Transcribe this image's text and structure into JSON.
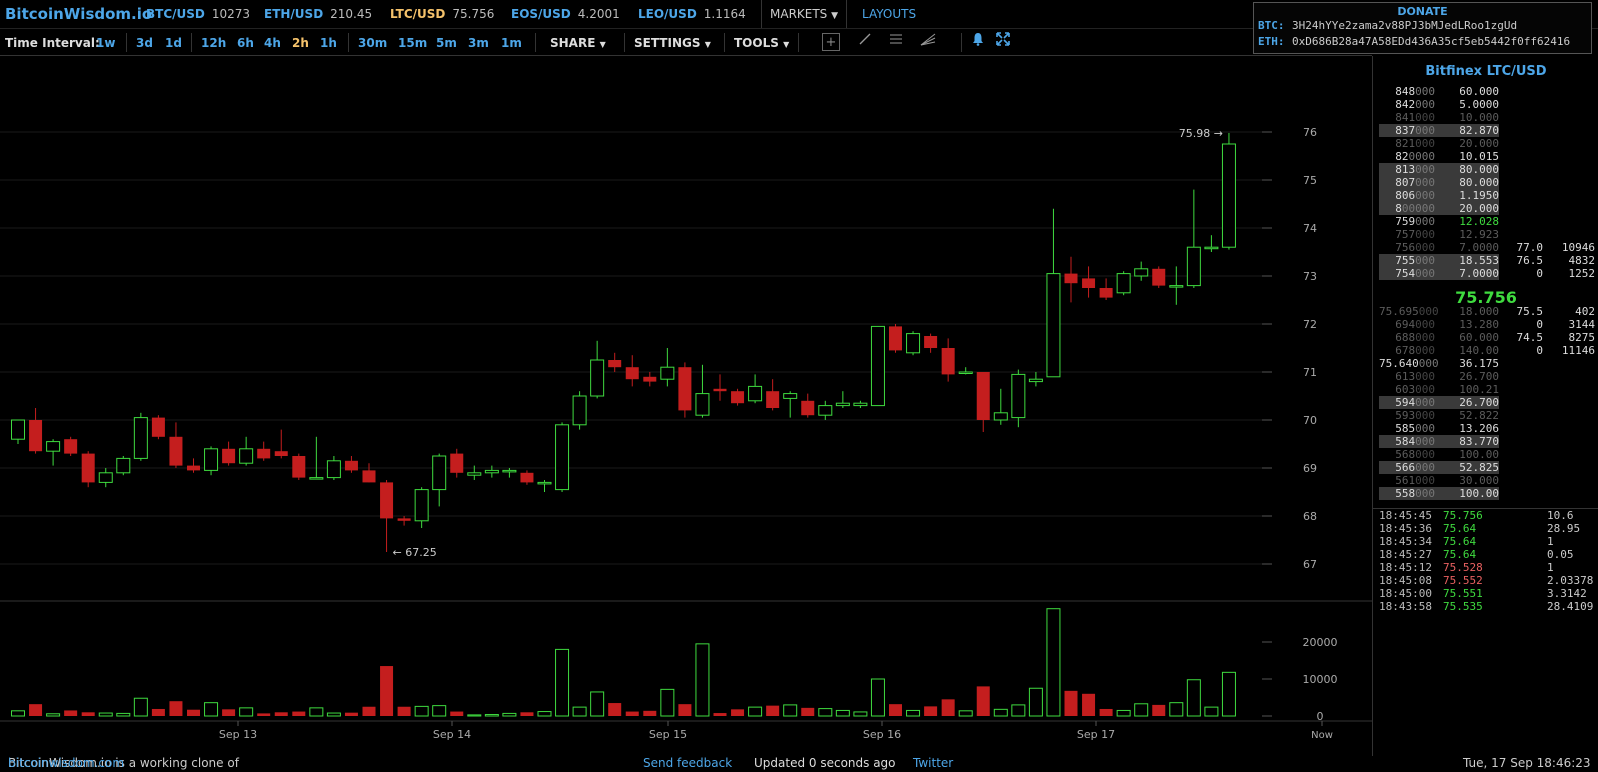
{
  "topbar": {
    "logo": "BitcoinWisdom.io",
    "tickers": [
      {
        "symbol": "BTC/USD",
        "price": "10273",
        "active": false
      },
      {
        "symbol": "ETH/USD",
        "price": "210.45",
        "active": false
      },
      {
        "symbol": "LTC/USD",
        "price": "75.756",
        "active": true
      },
      {
        "symbol": "EOS/USD",
        "price": "4.2001",
        "active": false
      },
      {
        "symbol": "LEO/USD",
        "price": "1.1164",
        "active": false
      }
    ],
    "markets_label": "MARKETS",
    "layouts_label": "LAYOUTS"
  },
  "donate": {
    "title": "DONATE",
    "btc_label": "BTC:",
    "btc_address": "3H24hYYe2zama2v88PJ3bMJedLRoo1zgUd",
    "eth_label": "ETH:",
    "eth_address": "0xD686B28a47A58EDd436A35cf5eb5442f0ff62416"
  },
  "toolbar": {
    "time_interval_label": "Time Interval:",
    "intervals": [
      "1w",
      "3d",
      "1d",
      "12h",
      "6h",
      "4h",
      "2h",
      "1h",
      "30m",
      "15m",
      "5m",
      "3m",
      "1m"
    ],
    "selected_interval": "2h",
    "share_label": "SHARE",
    "settings_label": "SETTINGS",
    "tools_label": "TOOLS",
    "icons": [
      "crosshair-icon",
      "line-tool-icon",
      "fib-levels-icon",
      "fan-tool-icon",
      "alert-bell-icon",
      "fullscreen-icon"
    ]
  },
  "chart": {
    "price_ticks": [
      "76",
      "75",
      "74",
      "73",
      "72",
      "71",
      "70",
      "69",
      "68",
      "67"
    ],
    "volume_ticks": [
      "20000",
      "10000",
      "0"
    ],
    "x_labels": [
      "Sep 13",
      "Sep 14",
      "Sep 15",
      "Sep 16",
      "Sep 17",
      "Now"
    ],
    "high_label": "75.98 →",
    "low_label": "← 67.25",
    "colors": {
      "up": "#3fdb3f",
      "down": "#c41e1e",
      "grid": "#1a1a1a",
      "axis_text": "#aaa"
    }
  },
  "chart_data": {
    "type": "candlestick",
    "symbol": "LTC/USD",
    "interval": "2h",
    "ylim": [
      66.7,
      76.6
    ],
    "volume_ylim": [
      0,
      30000
    ],
    "candles": [
      {
        "o": 69.6,
        "h": 70.0,
        "l": 69.5,
        "c": 70.0,
        "v": 1400
      },
      {
        "o": 70.0,
        "h": 70.25,
        "l": 69.3,
        "c": 69.35,
        "v": 3200
      },
      {
        "o": 69.35,
        "h": 69.6,
        "l": 69.05,
        "c": 69.55,
        "v": 600
      },
      {
        "o": 69.6,
        "h": 69.65,
        "l": 69.25,
        "c": 69.3,
        "v": 1500
      },
      {
        "o": 69.3,
        "h": 69.35,
        "l": 68.6,
        "c": 68.7,
        "v": 1000
      },
      {
        "o": 68.7,
        "h": 69.0,
        "l": 68.6,
        "c": 68.9,
        "v": 800
      },
      {
        "o": 68.9,
        "h": 69.25,
        "l": 68.85,
        "c": 69.2,
        "v": 700
      },
      {
        "o": 69.2,
        "h": 70.15,
        "l": 69.15,
        "c": 70.05,
        "v": 4800
      },
      {
        "o": 70.05,
        "h": 70.1,
        "l": 69.6,
        "c": 69.65,
        "v": 1900
      },
      {
        "o": 69.65,
        "h": 69.95,
        "l": 69.0,
        "c": 69.05,
        "v": 4000
      },
      {
        "o": 69.05,
        "h": 69.2,
        "l": 68.9,
        "c": 68.95,
        "v": 1700
      },
      {
        "o": 68.95,
        "h": 69.45,
        "l": 68.85,
        "c": 69.4,
        "v": 3600
      },
      {
        "o": 69.4,
        "h": 69.55,
        "l": 69.05,
        "c": 69.1,
        "v": 1800
      },
      {
        "o": 69.1,
        "h": 69.65,
        "l": 69.05,
        "c": 69.4,
        "v": 2200
      },
      {
        "o": 69.4,
        "h": 69.55,
        "l": 69.15,
        "c": 69.2,
        "v": 700
      },
      {
        "o": 69.35,
        "h": 69.8,
        "l": 69.2,
        "c": 69.25,
        "v": 1000
      },
      {
        "o": 69.25,
        "h": 69.3,
        "l": 68.75,
        "c": 68.8,
        "v": 1200
      },
      {
        "o": 68.8,
        "h": 69.65,
        "l": 68.8,
        "c": 68.8,
        "v": 2200
      },
      {
        "o": 68.8,
        "h": 69.25,
        "l": 68.75,
        "c": 69.15,
        "v": 800
      },
      {
        "o": 69.15,
        "h": 69.25,
        "l": 68.9,
        "c": 68.95,
        "v": 900
      },
      {
        "o": 68.95,
        "h": 69.1,
        "l": 68.7,
        "c": 68.7,
        "v": 2500
      },
      {
        "o": 68.7,
        "h": 68.75,
        "l": 67.25,
        "c": 67.95,
        "v": 13500
      },
      {
        "o": 67.95,
        "h": 68.0,
        "l": 67.8,
        "c": 67.9,
        "v": 2500
      },
      {
        "o": 67.9,
        "h": 68.6,
        "l": 67.75,
        "c": 68.55,
        "v": 2600
      },
      {
        "o": 68.55,
        "h": 69.3,
        "l": 68.2,
        "c": 69.25,
        "v": 2800
      },
      {
        "o": 69.3,
        "h": 69.4,
        "l": 68.8,
        "c": 68.9,
        "v": 1200
      },
      {
        "o": 68.85,
        "h": 69.05,
        "l": 68.75,
        "c": 68.9,
        "v": 300
      },
      {
        "o": 68.9,
        "h": 69.05,
        "l": 68.8,
        "c": 68.95,
        "v": 400
      },
      {
        "o": 68.95,
        "h": 69.0,
        "l": 68.8,
        "c": 68.95,
        "v": 700
      },
      {
        "o": 68.9,
        "h": 68.95,
        "l": 68.65,
        "c": 68.7,
        "v": 1000
      },
      {
        "o": 68.7,
        "h": 68.75,
        "l": 68.5,
        "c": 68.7,
        "v": 1200
      },
      {
        "o": 68.55,
        "h": 69.95,
        "l": 68.5,
        "c": 69.9,
        "v": 18000
      },
      {
        "o": 69.9,
        "h": 70.6,
        "l": 69.8,
        "c": 70.5,
        "v": 2400
      },
      {
        "o": 70.5,
        "h": 71.65,
        "l": 70.45,
        "c": 71.25,
        "v": 6500
      },
      {
        "o": 71.25,
        "h": 71.4,
        "l": 71.0,
        "c": 71.1,
        "v": 3500
      },
      {
        "o": 71.1,
        "h": 71.35,
        "l": 70.7,
        "c": 70.85,
        "v": 1200
      },
      {
        "o": 70.9,
        "h": 71.0,
        "l": 70.7,
        "c": 70.8,
        "v": 1400
      },
      {
        "o": 70.85,
        "h": 71.5,
        "l": 70.7,
        "c": 71.1,
        "v": 7200
      },
      {
        "o": 71.1,
        "h": 71.2,
        "l": 70.05,
        "c": 70.2,
        "v": 3200
      },
      {
        "o": 70.1,
        "h": 71.15,
        "l": 70.05,
        "c": 70.55,
        "v": 19500
      },
      {
        "o": 70.65,
        "h": 70.95,
        "l": 70.4,
        "c": 70.6,
        "v": 800
      },
      {
        "o": 70.6,
        "h": 70.65,
        "l": 70.3,
        "c": 70.35,
        "v": 1800
      },
      {
        "o": 70.4,
        "h": 70.95,
        "l": 70.35,
        "c": 70.7,
        "v": 2400
      },
      {
        "o": 70.6,
        "h": 70.85,
        "l": 70.2,
        "c": 70.25,
        "v": 2800
      },
      {
        "o": 70.45,
        "h": 70.6,
        "l": 70.05,
        "c": 70.55,
        "v": 3000
      },
      {
        "o": 70.4,
        "h": 70.55,
        "l": 70.05,
        "c": 70.1,
        "v": 2200
      },
      {
        "o": 70.1,
        "h": 70.4,
        "l": 70.0,
        "c": 70.3,
        "v": 2000
      },
      {
        "o": 70.3,
        "h": 70.6,
        "l": 70.25,
        "c": 70.35,
        "v": 1500
      },
      {
        "o": 70.3,
        "h": 70.4,
        "l": 70.25,
        "c": 70.35,
        "v": 1100
      },
      {
        "o": 70.3,
        "h": 71.95,
        "l": 70.3,
        "c": 71.95,
        "v": 10000
      },
      {
        "o": 71.95,
        "h": 72.0,
        "l": 71.4,
        "c": 71.45,
        "v": 3200
      },
      {
        "o": 71.4,
        "h": 71.85,
        "l": 71.35,
        "c": 71.8,
        "v": 1500
      },
      {
        "o": 71.75,
        "h": 71.8,
        "l": 71.4,
        "c": 71.5,
        "v": 2600
      },
      {
        "o": 71.5,
        "h": 71.7,
        "l": 70.8,
        "c": 70.95,
        "v": 4500
      },
      {
        "o": 71.0,
        "h": 71.1,
        "l": 70.95,
        "c": 71.0,
        "v": 1400
      },
      {
        "o": 71.0,
        "h": 71.0,
        "l": 69.75,
        "c": 70.0,
        "v": 8000
      },
      {
        "o": 70.0,
        "h": 70.65,
        "l": 69.9,
        "c": 70.15,
        "v": 1800
      },
      {
        "o": 70.05,
        "h": 71.05,
        "l": 69.85,
        "c": 70.95,
        "v": 3000
      },
      {
        "o": 70.8,
        "h": 71.0,
        "l": 70.7,
        "c": 70.85,
        "v": 7500
      },
      {
        "o": 70.9,
        "h": 74.4,
        "l": 70.9,
        "c": 73.05,
        "v": 29000
      },
      {
        "o": 73.05,
        "h": 73.4,
        "l": 72.45,
        "c": 72.85,
        "v": 6800
      },
      {
        "o": 72.95,
        "h": 73.2,
        "l": 72.55,
        "c": 72.75,
        "v": 6000
      },
      {
        "o": 72.75,
        "h": 72.95,
        "l": 72.5,
        "c": 72.55,
        "v": 1900
      },
      {
        "o": 72.65,
        "h": 73.1,
        "l": 72.6,
        "c": 73.05,
        "v": 1500
      },
      {
        "o": 73.0,
        "h": 73.3,
        "l": 72.9,
        "c": 73.15,
        "v": 3300
      },
      {
        "o": 73.15,
        "h": 73.2,
        "l": 72.75,
        "c": 72.8,
        "v": 3000
      },
      {
        "o": 72.8,
        "h": 73.2,
        "l": 72.4,
        "c": 72.8,
        "v": 3600
      },
      {
        "o": 72.8,
        "h": 74.8,
        "l": 72.75,
        "c": 73.6,
        "v": 9800
      },
      {
        "o": 73.6,
        "h": 73.85,
        "l": 73.5,
        "c": 73.6,
        "v": 2400
      },
      {
        "o": 73.6,
        "h": 75.98,
        "l": 73.55,
        "c": 75.75,
        "v": 11800
      }
    ]
  },
  "orderbook": {
    "title": "Bitfinex LTC/USD",
    "last_price": "75.756",
    "asks": [
      {
        "p_bright": "848",
        "p_dim": "000",
        "amount": "60.000",
        "style": "bright",
        "hl": false
      },
      {
        "p_bright": "842",
        "p_dim": "000",
        "amount": "5.0000",
        "style": "bright",
        "hl": false
      },
      {
        "p_bright": "841",
        "p_dim": "000",
        "amount": "10.000",
        "style": "dim",
        "hl": false
      },
      {
        "p_bright": "837",
        "p_dim": "000",
        "amount": "82.870",
        "style": "bright",
        "hl": true
      },
      {
        "p_bright": "821",
        "p_dim": "000",
        "amount": "20.000",
        "style": "dim",
        "hl": false
      },
      {
        "p_bright": "82",
        "p_dim": "0000",
        "amount": "10.015",
        "style": "bright",
        "hl": false
      },
      {
        "p_bright": "813",
        "p_dim": "000",
        "amount": "80.000",
        "style": "bright",
        "hl": true
      },
      {
        "p_bright": "807",
        "p_dim": "000",
        "amount": "80.000",
        "style": "bright",
        "hl": true
      },
      {
        "p_bright": "806",
        "p_dim": "000",
        "amount": "1.1950",
        "style": "bright",
        "hl": true
      },
      {
        "p_bright": "8",
        "p_dim": "00000",
        "amount": "20.000",
        "style": "bright",
        "hl": true
      },
      {
        "p_bright": "759",
        "p_dim": "000",
        "amount": "12.028",
        "style": "green",
        "hl": false
      },
      {
        "p_bright": "757",
        "p_dim": "000",
        "amount": "12.923",
        "style": "dim",
        "hl": false
      },
      {
        "p_bright": "756",
        "p_dim": "000",
        "amount": "7.0000",
        "style": "dim",
        "hl": false,
        "d1": "77.0",
        "d2": "10946"
      },
      {
        "p_bright": "755",
        "p_dim": "000",
        "amount": "18.553",
        "style": "bright",
        "hl": true,
        "d1": "76.5",
        "d2": "4832"
      },
      {
        "p_bright": "754",
        "p_dim": "000",
        "amount": "7.0000",
        "style": "bright",
        "hl": true,
        "d1": "0",
        "d2": "1252"
      }
    ],
    "bids": [
      {
        "p_bright": "75.695",
        "p_dim": "000",
        "amount": "18.000",
        "style": "dim",
        "hl": false,
        "d1": "75.5",
        "d2": "402"
      },
      {
        "p_bright": "694",
        "p_dim": "000",
        "amount": "13.280",
        "style": "dim",
        "hl": false,
        "d1": "0",
        "d2": "3144"
      },
      {
        "p_bright": "688",
        "p_dim": "000",
        "amount": "60.000",
        "style": "dim",
        "hl": false,
        "d1": "74.5",
        "d2": "8275"
      },
      {
        "p_bright": "678",
        "p_dim": "000",
        "amount": "140.00",
        "style": "dim",
        "hl": false,
        "d1": "0",
        "d2": "11146"
      },
      {
        "p_bright": "75.640",
        "p_dim": "000",
        "amount": "36.175",
        "style": "bright",
        "hl": false
      },
      {
        "p_bright": "613",
        "p_dim": "000",
        "amount": "26.700",
        "style": "dim",
        "hl": false
      },
      {
        "p_bright": "603",
        "p_dim": "000",
        "amount": "100.21",
        "style": "dim",
        "hl": false
      },
      {
        "p_bright": "594",
        "p_dim": "000",
        "amount": "26.700",
        "style": "bright",
        "hl": true
      },
      {
        "p_bright": "593",
        "p_dim": "000",
        "amount": "52.822",
        "style": "dim",
        "hl": false
      },
      {
        "p_bright": "585",
        "p_dim": "000",
        "amount": "13.206",
        "style": "bright",
        "hl": false
      },
      {
        "p_bright": "584",
        "p_dim": "000",
        "amount": "83.770",
        "style": "bright",
        "hl": true
      },
      {
        "p_bright": "568",
        "p_dim": "000",
        "amount": "100.00",
        "style": "dim",
        "hl": false
      },
      {
        "p_bright": "566",
        "p_dim": "000",
        "amount": "52.825",
        "style": "bright",
        "hl": true
      },
      {
        "p_bright": "561",
        "p_dim": "000",
        "amount": "30.000",
        "style": "dim",
        "hl": false
      },
      {
        "p_bright": "558",
        "p_dim": "000",
        "amount": "100.00",
        "style": "bright",
        "hl": true
      }
    ]
  },
  "trades": [
    {
      "time": "18:45:45",
      "price": "75.756",
      "dir": "up",
      "vol": "10.6"
    },
    {
      "time": "18:45:36",
      "price": "75.64",
      "dir": "up",
      "vol": "28.95"
    },
    {
      "time": "18:45:34",
      "price": "75.64",
      "dir": "up",
      "vol": "1"
    },
    {
      "time": "18:45:27",
      "price": "75.64",
      "dir": "up",
      "vol": "0.05"
    },
    {
      "time": "18:45:12",
      "price": "75.528",
      "dir": "down",
      "vol": "1"
    },
    {
      "time": "18:45:08",
      "price": "75.552",
      "dir": "down",
      "vol": "2.03378"
    },
    {
      "time": "18:45:00",
      "price": "75.551",
      "dir": "up",
      "vol": "3.3142"
    },
    {
      "time": "18:43:58",
      "price": "75.535",
      "dir": "up",
      "vol": "28.4109"
    }
  ],
  "status": {
    "clone_text": "BitcoinWisdom.io is a working clone of",
    "clone_link": "bitcoinwisdom.com",
    "feedback": "Send feedback",
    "updated": "Updated 0 seconds ago",
    "twitter": "Twitter",
    "datetime": "Tue, 17 Sep 18:46:23"
  }
}
